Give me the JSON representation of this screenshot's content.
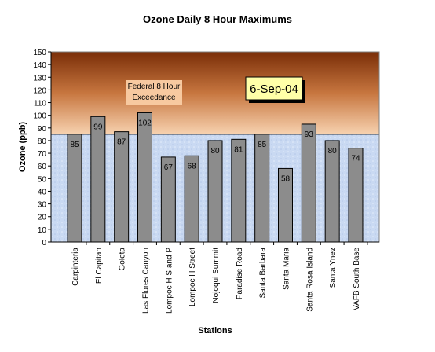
{
  "chart_data": {
    "type": "bar",
    "title": "Ozone Daily 8 Hour Maximums",
    "x_label": "Stations",
    "y_label": "Ozone (ppb)",
    "categories": [
      "Carpinteria",
      "El Capitan",
      "Goleta",
      "Las Flores Canyon",
      "Lompoc H S and P",
      "Lompoc H Street",
      "Nojoqui Summit",
      "Paradise Road",
      "Santa Barbara",
      "Santa Maria",
      "Santa Rosa Island",
      "Santa Ynez",
      "VAFB South Base"
    ],
    "values": [
      85,
      99,
      87,
      102,
      67,
      68,
      80,
      81,
      85,
      58,
      93,
      80,
      74
    ],
    "color": "#8c8c8c",
    "ylim": [
      0,
      150
    ],
    "yticks": [
      0,
      10,
      20,
      30,
      40,
      50,
      60,
      70,
      80,
      90,
      100,
      110,
      120,
      130,
      140,
      150
    ],
    "threshold": 85,
    "threshold_label": "Federal 8 Hour Exceedance",
    "date_label": "6-Sep-04"
  }
}
